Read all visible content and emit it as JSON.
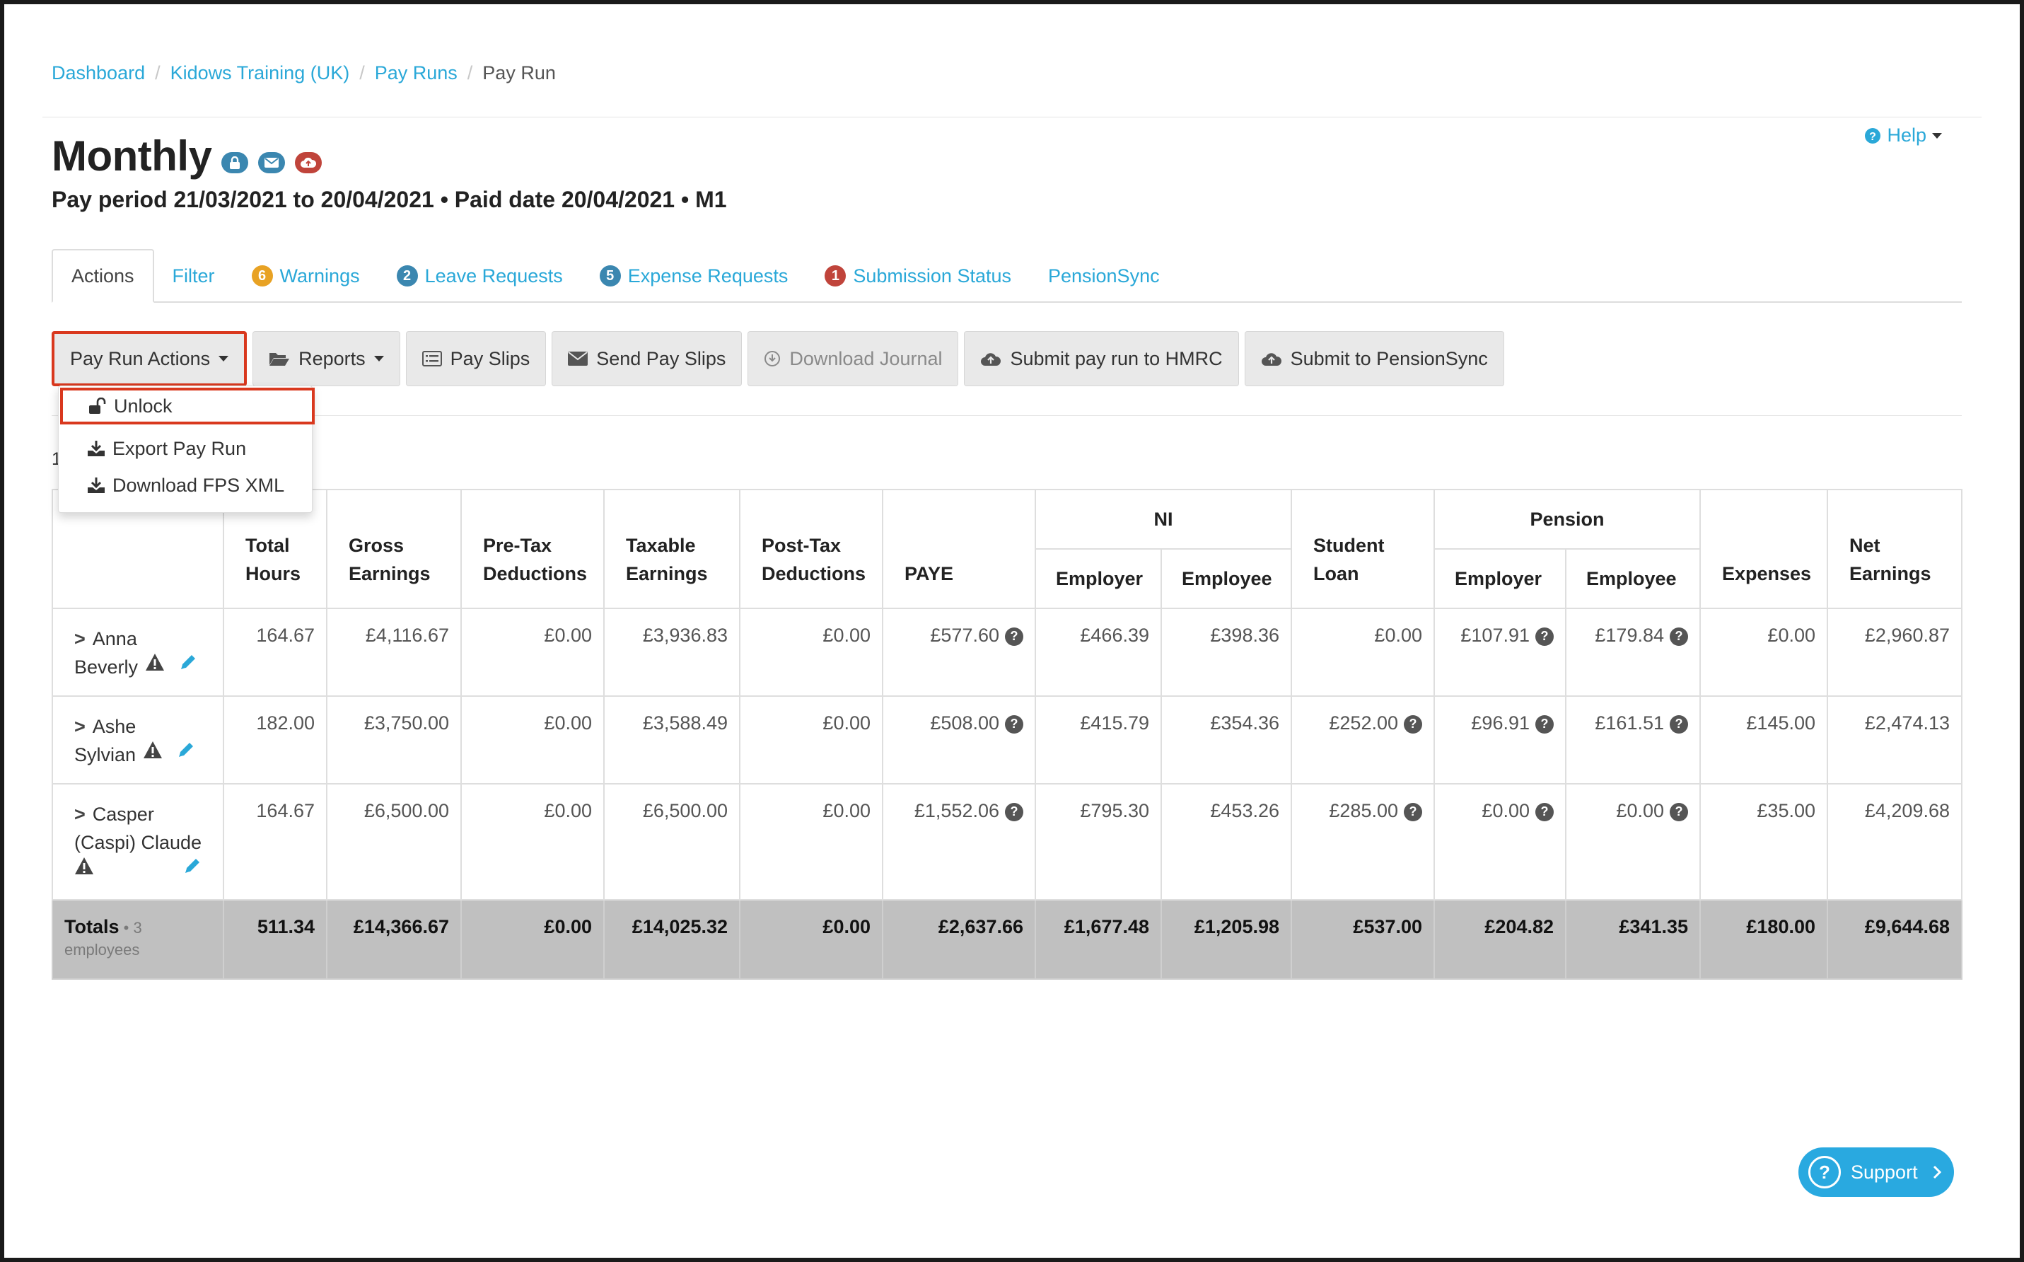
{
  "breadcrumb": [
    "Dashboard",
    "Kidows Training (UK)",
    "Pay Runs",
    "Pay Run"
  ],
  "page": {
    "title": "Monthly",
    "subtitle": "Pay period 21/03/2021 to 20/04/2021 • Paid date 20/04/2021 • M1",
    "help_label": "Help"
  },
  "status_icons": [
    {
      "icon": "lock-icon",
      "color": "#3b87b0"
    },
    {
      "icon": "envelope-icon",
      "color": "#3b87b0"
    },
    {
      "icon": "cloud-upload-icon",
      "color": "#c0443b"
    }
  ],
  "tabs": [
    {
      "label": "Actions",
      "active": true
    },
    {
      "label": "Filter"
    },
    {
      "label": "Warnings",
      "badge": "6",
      "badge_color": "#e8a224"
    },
    {
      "label": "Leave Requests",
      "badge": "2",
      "badge_color": "#3b87b0"
    },
    {
      "label": "Expense Requests",
      "badge": "5",
      "badge_color": "#3b87b0"
    },
    {
      "label": "Submission Status",
      "badge": "1",
      "badge_color": "#c0443b"
    },
    {
      "label": "PensionSync"
    }
  ],
  "toolbar": {
    "pay_run_actions": "Pay Run Actions",
    "reports": "Reports",
    "pay_slips": "Pay Slips",
    "send_pay_slips": "Send Pay Slips",
    "download_journal": "Download Journal",
    "submit_hmrc": "Submit pay run to HMRC",
    "submit_pensionsync": "Submit to PensionSync"
  },
  "dropdown": {
    "unlock": "Unlock",
    "export": "Export Pay Run",
    "download_fps": "Download FPS XML"
  },
  "stray_text": "1",
  "table": {
    "headers": {
      "total_hours": [
        "Total",
        "Hours"
      ],
      "gross": [
        "Gross",
        "Earnings"
      ],
      "pretax": [
        "Pre-Tax",
        "Deductions"
      ],
      "taxable": [
        "Taxable",
        "Earnings"
      ],
      "posttax": [
        "Post-Tax",
        "Deductions"
      ],
      "paye": "PAYE",
      "ni": "NI",
      "ni_employer": "Employer",
      "ni_employee": "Employee",
      "student_loan": [
        "Student",
        "Loan"
      ],
      "pension": "Pension",
      "pension_employer": "Employer",
      "pension_employee": "Employee",
      "expenses": "Expenses",
      "net": [
        "Net",
        "Earnings"
      ]
    },
    "rows": [
      {
        "name": [
          "Anna",
          "Beverly"
        ],
        "hours": "164.67",
        "gross": "£4,116.67",
        "pretax": "£0.00",
        "taxable": "£3,936.83",
        "posttax": "£0.00",
        "paye": "£577.60",
        "ni_employer": "£466.39",
        "ni_employee": "£398.36",
        "student_loan": "£0.00",
        "pension_employer": "£107.91",
        "pension_employee": "£179.84",
        "expenses": "£0.00",
        "net": "£2,960.87"
      },
      {
        "name": [
          "Ashe",
          "Sylvian"
        ],
        "hours": "182.00",
        "gross": "£3,750.00",
        "pretax": "£0.00",
        "taxable": "£3,588.49",
        "posttax": "£0.00",
        "paye": "£508.00",
        "ni_employer": "£415.79",
        "ni_employee": "£354.36",
        "student_loan": "£252.00",
        "pension_employer": "£96.91",
        "pension_employee": "£161.51",
        "expenses": "£145.00",
        "net": "£2,474.13"
      },
      {
        "name": [
          "Casper",
          "(Caspi) Claude"
        ],
        "hours": "164.67",
        "gross": "£6,500.00",
        "pretax": "£0.00",
        "taxable": "£6,500.00",
        "posttax": "£0.00",
        "paye": "£1,552.06",
        "ni_employer": "£795.30",
        "ni_employee": "£453.26",
        "student_loan": "£285.00",
        "pension_employer": "£0.00",
        "pension_employee": "£0.00",
        "expenses": "£35.00",
        "net": "£4,209.68"
      }
    ],
    "totals": {
      "label": "Totals",
      "sub_dot": " • 3",
      "sub": "employees",
      "hours": "511.34",
      "gross": "£14,366.67",
      "pretax": "£0.00",
      "taxable": "£14,025.32",
      "posttax": "£0.00",
      "paye": "£2,637.66",
      "ni_employer": "£1,677.48",
      "ni_employee": "£1,205.98",
      "student_loan": "£537.00",
      "pension_employer": "£204.82",
      "pension_employee": "£341.35",
      "expenses": "£180.00",
      "net": "£9,644.68"
    }
  },
  "support_label": "Support",
  "colors": {
    "link": "#2aa8d8",
    "highlight": "#d9381e",
    "totals_bg": "#c0c0c0",
    "support": "#29a9e0"
  }
}
